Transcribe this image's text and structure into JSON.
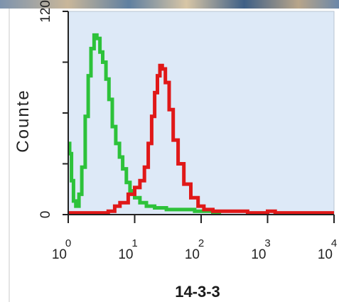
{
  "image_strip": {
    "description_icon": "photo-strip"
  },
  "chart_data": {
    "type": "line",
    "xlabel": "14-3-3",
    "ylabel": "Counte",
    "x_scale": "log",
    "xlim": [
      1,
      10000
    ],
    "ylim": [
      0,
      120
    ],
    "x_tick_labels": [
      {
        "base": "10",
        "exp": "0"
      },
      {
        "base": "10",
        "exp": "1"
      },
      {
        "base": "10",
        "exp": "2"
      },
      {
        "base": "10",
        "exp": "3"
      },
      {
        "base": "10",
        "exp": "4"
      }
    ],
    "y_tick_labels": [
      "0",
      "120"
    ],
    "y_minor_ticks": [
      30,
      60,
      90
    ],
    "grid": false,
    "plot_background": "#dde9f7",
    "series": [
      {
        "color": "#2dc23a",
        "points": [
          [
            1.0,
            42
          ],
          [
            1.05,
            36
          ],
          [
            1.12,
            20
          ],
          [
            1.2,
            8
          ],
          [
            1.3,
            5
          ],
          [
            1.45,
            12
          ],
          [
            1.6,
            28
          ],
          [
            1.8,
            58
          ],
          [
            2.0,
            82
          ],
          [
            2.2,
            98
          ],
          [
            2.45,
            106
          ],
          [
            2.7,
            104
          ],
          [
            3.0,
            96
          ],
          [
            3.3,
            90
          ],
          [
            3.7,
            80
          ],
          [
            4.1,
            68
          ],
          [
            4.6,
            52
          ],
          [
            5.2,
            42
          ],
          [
            5.9,
            34
          ],
          [
            6.6,
            27
          ],
          [
            7.5,
            19
          ],
          [
            8.5,
            14
          ],
          [
            10,
            10
          ],
          [
            12,
            7
          ],
          [
            15,
            5
          ],
          [
            20,
            4
          ],
          [
            30,
            3
          ],
          [
            50,
            3
          ],
          [
            80,
            2
          ],
          [
            100,
            2
          ],
          [
            150,
            1
          ],
          [
            200,
            1
          ]
        ]
      },
      {
        "color": "#e01818",
        "points": [
          [
            1.0,
            1
          ],
          [
            2,
            1
          ],
          [
            3,
            1
          ],
          [
            4,
            2
          ],
          [
            5,
            5
          ],
          [
            6,
            7
          ],
          [
            8,
            12
          ],
          [
            10,
            16
          ],
          [
            12,
            20
          ],
          [
            14,
            28
          ],
          [
            16,
            42
          ],
          [
            18,
            58
          ],
          [
            20,
            72
          ],
          [
            22,
            82
          ],
          [
            24,
            88
          ],
          [
            26,
            86
          ],
          [
            29,
            78
          ],
          [
            33,
            62
          ],
          [
            38,
            44
          ],
          [
            45,
            30
          ],
          [
            55,
            18
          ],
          [
            70,
            10
          ],
          [
            90,
            5
          ],
          [
            110,
            3
          ],
          [
            150,
            2
          ],
          [
            200,
            2
          ],
          [
            300,
            2
          ],
          [
            500,
            1
          ],
          [
            700,
            1
          ],
          [
            900,
            1
          ],
          [
            1000,
            2
          ],
          [
            1300,
            1
          ],
          [
            2000,
            1
          ],
          [
            4000,
            1
          ],
          [
            10000,
            1
          ]
        ]
      }
    ]
  }
}
